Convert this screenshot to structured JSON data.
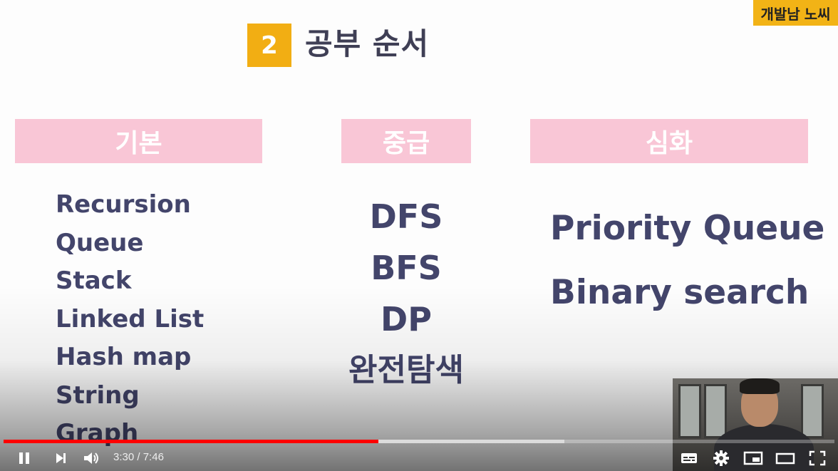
{
  "slide": {
    "channel_name_part1": "개발남",
    "channel_name_part2": "노씨",
    "section_number": "2",
    "section_title": "공부 순서",
    "columns": [
      {
        "header": "기본",
        "items": [
          "Recursion",
          "Queue",
          "Stack",
          "Linked List",
          "Hash map",
          "String",
          "Graph"
        ]
      },
      {
        "header": "중급",
        "items": [
          "DFS",
          "BFS",
          "DP",
          "완전탐색"
        ]
      },
      {
        "header": "심화",
        "items": [
          "Priority Queue",
          "Binary search"
        ]
      }
    ]
  },
  "player": {
    "current_time": "3:30",
    "separator": " / ",
    "duration": "7:46",
    "progress_fraction": 0.451,
    "buffered_fraction": 0.675,
    "progress_color": "#ff0000"
  },
  "icons": {
    "pause": "pause-icon",
    "next": "next-icon",
    "volume": "volume-icon",
    "captions": "subtitles-icon",
    "settings": "gear-icon",
    "miniplayer": "miniplayer-icon",
    "theater": "theater-icon",
    "fullscreen": "fullscreen-icon"
  },
  "colors": {
    "accent_orange": "#f2ae13",
    "header_pink": "#f9c6d6",
    "text_navy": "#43456b"
  }
}
